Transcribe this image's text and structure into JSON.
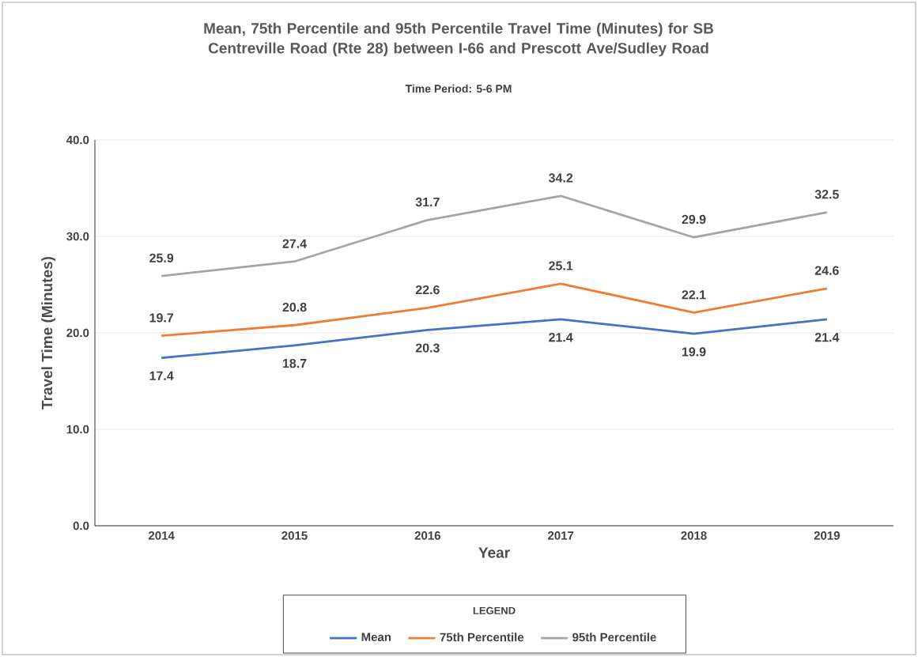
{
  "chart_data": {
    "type": "line",
    "title": "Mean, 75th Percentile and 95th Percentile Travel Time (Minutes) for SB Centreville Road (Rte 28) between I-66 and Prescott Ave/Sudley Road",
    "subtitle": "Time Period: 5-6 PM",
    "xlabel": "Year",
    "ylabel": "Travel Time (Minutes)",
    "legend_title": "LEGEND",
    "categories": [
      "2014",
      "2015",
      "2016",
      "2017",
      "2018",
      "2019"
    ],
    "series": [
      {
        "name": "Mean",
        "color": "#4472c4",
        "values": [
          17.4,
          18.7,
          20.3,
          21.4,
          19.9,
          21.4
        ]
      },
      {
        "name": "75th Percentile",
        "color": "#ed7d31",
        "values": [
          19.7,
          20.8,
          22.6,
          25.1,
          22.1,
          24.6
        ]
      },
      {
        "name": "95th Percentile",
        "color": "#a5a5a5",
        "values": [
          25.9,
          27.4,
          31.7,
          34.2,
          29.9,
          32.5
        ]
      }
    ],
    "ylim": [
      0,
      40
    ],
    "yticks": [
      {
        "value": 0,
        "label": "0.0"
      },
      {
        "value": 10,
        "label": "10.0"
      },
      {
        "value": 20,
        "label": "20.0"
      },
      {
        "value": 30,
        "label": "30.0"
      },
      {
        "value": 40,
        "label": "40.0"
      }
    ],
    "grid": "y",
    "legend": "bottom",
    "data_labels": true,
    "marker": "none",
    "line_style": "solid"
  }
}
